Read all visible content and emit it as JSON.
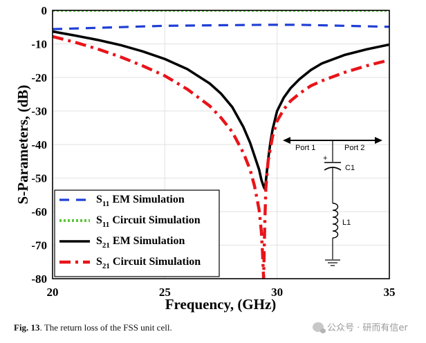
{
  "chart_data": {
    "type": "line",
    "xlabel": "Frequency, (GHz)",
    "ylabel": "S-Parameters, (dB)",
    "xlim": [
      20,
      35
    ],
    "ylim": [
      -80,
      0
    ],
    "xticks": [
      20,
      25,
      30,
      35
    ],
    "yticks": [
      0,
      -10,
      -20,
      -30,
      -40,
      -50,
      -60,
      -70,
      -80
    ],
    "grid": true,
    "legend_position": "bottom-left",
    "series": [
      {
        "name": "S11 EM Simulation",
        "label_main": "S",
        "label_sub": "11",
        "label_rest": " EM Simulation",
        "color": "#1f3fd6",
        "style": "dashed",
        "x": [
          20,
          22,
          25,
          28,
          29.5,
          31,
          33,
          35
        ],
        "y": [
          -5.6,
          -5.2,
          -4.6,
          -4.4,
          -4.3,
          -4.3,
          -4.6,
          -4.9
        ]
      },
      {
        "name": "S11 Circuit Simulation",
        "label_main": "S",
        "label_sub": "11",
        "label_rest": " Circuit Simulation",
        "color": "#5cc43a",
        "style": "dotted",
        "x": [
          20,
          25,
          30,
          35
        ],
        "y": [
          0,
          0,
          0,
          0
        ]
      },
      {
        "name": "S21 EM Simulation",
        "label_main": "S",
        "label_sub": "21",
        "label_rest": " EM Simulation",
        "color": "#000000",
        "style": "solid",
        "x": [
          20,
          21,
          22,
          23,
          24,
          25,
          26,
          27,
          27.5,
          28,
          28.5,
          28.8,
          29,
          29.2,
          29.3,
          29.4,
          29.45,
          29.5,
          29.6,
          29.7,
          29.8,
          30,
          30.3,
          30.6,
          31,
          31.5,
          32,
          33,
          34,
          35
        ],
        "y": [
          -6.3,
          -7.5,
          -8.8,
          -10.3,
          -12.2,
          -14.5,
          -17.5,
          -21.8,
          -24.8,
          -28.8,
          -34.8,
          -39.5,
          -43.5,
          -47.5,
          -50.5,
          -52.5,
          -53.2,
          -51,
          -44.5,
          -39.5,
          -35.5,
          -30,
          -26,
          -23.2,
          -20.5,
          -17.8,
          -15.8,
          -13.3,
          -11.6,
          -10.2
        ]
      },
      {
        "name": "S21 Circuit Simulation",
        "label_main": "S",
        "label_sub": "21",
        "label_rest": " Circuit Simulation",
        "color": "#e8141a",
        "style": "dashdot",
        "x": [
          20,
          21,
          22,
          23,
          24,
          25,
          26,
          27,
          27.5,
          28,
          28.5,
          28.8,
          29,
          29.2,
          29.3,
          29.35,
          29.4,
          29.45,
          29.5,
          29.6,
          29.8,
          30,
          30.3,
          30.6,
          31,
          31.5,
          32,
          33,
          34,
          35
        ],
        "y": [
          -7.8,
          -9.5,
          -11.5,
          -13.8,
          -16.5,
          -19.5,
          -23.5,
          -28.5,
          -32,
          -36.2,
          -42.5,
          -47.5,
          -52.5,
          -59.5,
          -66,
          -72,
          -80,
          -64,
          -53,
          -45,
          -37.5,
          -33,
          -29.5,
          -27,
          -24.8,
          -22.5,
          -21,
          -18.5,
          -16.5,
          -14.8
        ]
      }
    ]
  },
  "circuit": {
    "port1": "Port 1",
    "port2": "Port 2",
    "cap_label": "C1",
    "cap_polarity": "+",
    "ind_label": "L1"
  },
  "caption": {
    "fig": "Fig. 13",
    "text": ".  The return loss of the FSS unit cell."
  },
  "watermark": "公众号 · 研而有信er"
}
